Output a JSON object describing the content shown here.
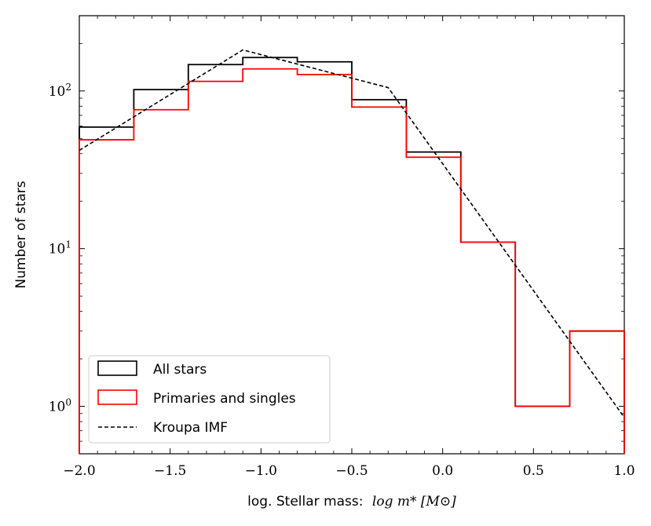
{
  "chart_data": {
    "type": "histogram",
    "yscale": "log",
    "xlim": [
      -2.0,
      1.0
    ],
    "ylim": [
      0.5,
      300
    ],
    "xlabel": "log. Stellar mass:",
    "xlabel_math": "log m* [M⊙]",
    "ylabel": "Number of stars",
    "x_ticks": [
      {
        "value": -2.0,
        "label": "−2.0"
      },
      {
        "value": -1.5,
        "label": "−1.5"
      },
      {
        "value": -1.0,
        "label": "−1.0"
      },
      {
        "value": -0.5,
        "label": "−0.5"
      },
      {
        "value": 0.0,
        "label": "0.0"
      },
      {
        "value": 0.5,
        "label": "0.5"
      },
      {
        "value": 1.0,
        "label": "1.0"
      }
    ],
    "y_ticks": [
      {
        "value": 1,
        "base": "10",
        "exp": "0"
      },
      {
        "value": 10,
        "base": "10",
        "exp": "1"
      },
      {
        "value": 100,
        "base": "10",
        "exp": "2"
      }
    ],
    "bin_edges": [
      -2.0,
      -1.7,
      -1.4,
      -1.1,
      -0.8,
      -0.5,
      -0.2,
      0.1,
      0.4,
      0.7,
      1.0
    ],
    "series": [
      {
        "name": "All stars",
        "style": "step",
        "color": "#000000",
        "values": [
          59,
          102,
          147,
          163,
          153,
          88,
          41,
          11,
          1,
          3
        ]
      },
      {
        "name": "Primaries and singles",
        "style": "step",
        "color": "#ff0000",
        "values": [
          49,
          76,
          115,
          138,
          127,
          79,
          38,
          11,
          1,
          3
        ]
      },
      {
        "name": "Kroupa IMF",
        "style": "dashed-line",
        "color": "#000000",
        "x": [
          -2.0,
          -1.1,
          -0.3,
          1.0
        ],
        "y": [
          42,
          182,
          105,
          0.85
        ]
      }
    ],
    "legend_position": "lower-left"
  }
}
